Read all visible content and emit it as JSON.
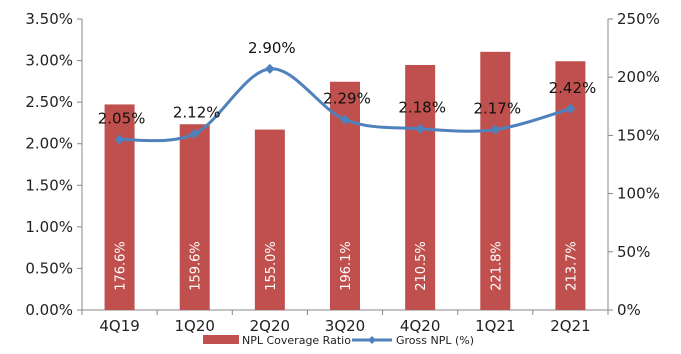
{
  "chart_data": {
    "type": "bar",
    "categories": [
      "4Q19",
      "1Q20",
      "2Q20",
      "3Q20",
      "4Q20",
      "1Q21",
      "2Q21"
    ],
    "y_left": {
      "ticks": [
        "0.00%",
        "0.50%",
        "1.00%",
        "1.50%",
        "2.00%",
        "2.50%",
        "3.00%",
        "3.50%"
      ],
      "min": 0,
      "max": 3.5
    },
    "y_right": {
      "ticks": [
        "0%",
        "50%",
        "100%",
        "150%",
        "200%",
        "250%"
      ],
      "min": 0,
      "max": 250
    },
    "series": [
      {
        "name": "NPL Coverage Ratio",
        "kind": "bar",
        "axis": "right",
        "color": "#c0504d",
        "values": [
          176.6,
          159.6,
          155.0,
          196.1,
          210.5,
          221.8,
          213.7
        ],
        "labels": [
          "176.6%",
          "159.6%",
          "155.0%",
          "196.1%",
          "210.5%",
          "221.8%",
          "213.7%"
        ]
      },
      {
        "name": "Gross NPL (%)",
        "kind": "line",
        "axis": "left",
        "color": "#4f81bd",
        "values": [
          2.05,
          2.12,
          2.9,
          2.29,
          2.18,
          2.17,
          2.42
        ],
        "labels": [
          "2.05%",
          "2.12%",
          "2.90%",
          "2.29%",
          "2.18%",
          "2.17%",
          "2.42%"
        ]
      }
    ],
    "legend": {
      "position": "bottom",
      "items": [
        "NPL Coverage Ratio",
        "Gross NPL (%)"
      ]
    },
    "grid": false
  }
}
